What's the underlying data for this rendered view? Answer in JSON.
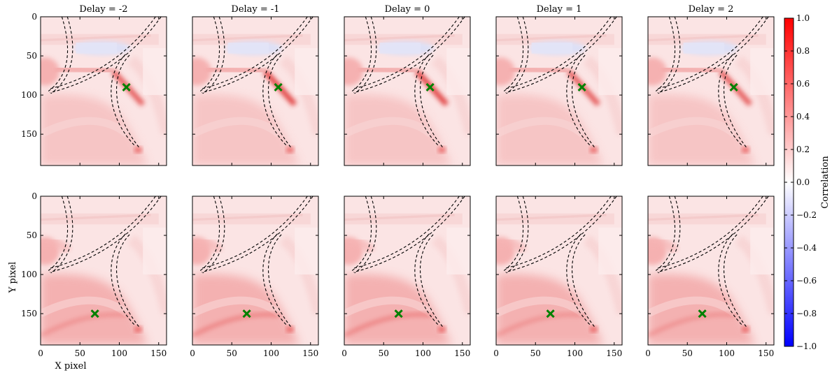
{
  "chart_data": {
    "type": "heatmap",
    "layout": {
      "rows": 2,
      "cols": 5
    },
    "column_titles": [
      "Delay = -2",
      "Delay = -1",
      "Delay = 0",
      "Delay = 1",
      "Delay = 2"
    ],
    "xlabel": "X pixel",
    "ylabel": "Y pixel",
    "xlim": [
      0,
      160
    ],
    "ylim": [
      190,
      0
    ],
    "x_ticks": [
      "0",
      "50",
      "100",
      "150"
    ],
    "y_ticks": [
      "0",
      "50",
      "100",
      "150"
    ],
    "colorbar": {
      "label": "Correlation",
      "range": [
        -1.0,
        1.0
      ],
      "ticks": [
        "1.0",
        "0.8",
        "0.6",
        "0.4",
        "0.2",
        "0.0",
        "−0.2",
        "−0.4",
        "−0.6",
        "−0.8",
        "−1.0"
      ],
      "colors": {
        "low": "#0000ff",
        "mid": "#ffffff",
        "high": "#ff0000"
      }
    },
    "markers": [
      {
        "row": 0,
        "x": 109,
        "y": 90,
        "symbol": "x",
        "color": "#008000"
      },
      {
        "row": 1,
        "x": 69,
        "y": 150,
        "symbol": "x",
        "color": "#008000"
      }
    ],
    "boundary_lines": {
      "style": "dashed",
      "color": "#000000"
    }
  }
}
